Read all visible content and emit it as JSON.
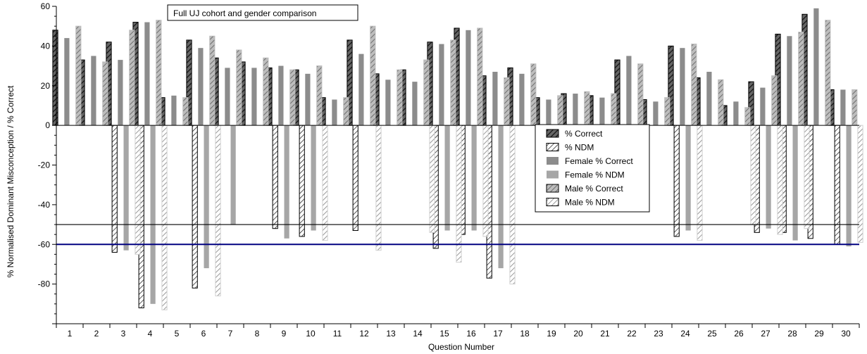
{
  "chart_data": {
    "type": "bar",
    "title": "Full UJ cohort and gender comparison",
    "xlabel": "Question Number",
    "ylabel": "% Normalised Dominant Misconception / % Correct",
    "ylim": [
      -100,
      60
    ],
    "y_ticks": [
      -80,
      -60,
      -40,
      -20,
      0,
      20,
      40,
      60
    ],
    "categories": [
      "1",
      "2",
      "3",
      "4",
      "5",
      "6",
      "7",
      "8",
      "9",
      "10",
      "11",
      "12",
      "13",
      "14",
      "15",
      "16",
      "17",
      "18",
      "19",
      "20",
      "21",
      "22",
      "23",
      "24",
      "25",
      "26",
      "27",
      "28",
      "29",
      "30"
    ],
    "grid": false,
    "legend_position": "center-right",
    "reference_lines": [
      {
        "y": -50,
        "color": "#000000"
      },
      {
        "y": -60,
        "color": "#000080"
      }
    ],
    "series": [
      {
        "name": "% Correct",
        "pattern": "dark-hatch",
        "values": [
          48,
          33,
          42,
          52,
          14,
          43,
          34,
          32,
          29,
          28,
          14,
          43,
          26,
          28,
          42,
          49,
          25,
          29,
          14,
          16,
          15,
          33,
          13,
          40,
          24,
          10,
          22,
          46,
          56,
          18
        ]
      },
      {
        "name": "% NDM",
        "pattern": "white-hatch",
        "values": [
          0,
          0,
          -64,
          -92,
          0,
          -82,
          0,
          0,
          -52,
          -56,
          0,
          -53,
          0,
          0,
          -62,
          -55,
          -77,
          0,
          0,
          0,
          0,
          0,
          0,
          -56,
          0,
          0,
          -54,
          -54,
          -57,
          -60
        ]
      },
      {
        "name": "Female % Correct",
        "pattern": "solid-dark-gray",
        "values": [
          44,
          35,
          33,
          52,
          15,
          39,
          29,
          29,
          30,
          26,
          13,
          36,
          23,
          22,
          41,
          48,
          27,
          26,
          13,
          16,
          14,
          35,
          12,
          39,
          27,
          12,
          19,
          45,
          59,
          18
        ]
      },
      {
        "name": "Female % NDM",
        "pattern": "solid-light-gray",
        "values": [
          0,
          0,
          -63,
          -90,
          0,
          -72,
          -50,
          0,
          -57,
          -53,
          0,
          0,
          0,
          0,
          -53,
          -53,
          -72,
          0,
          0,
          0,
          0,
          0,
          0,
          -53,
          0,
          0,
          -52,
          -58,
          0,
          -61
        ]
      },
      {
        "name": "Male % Correct",
        "pattern": "gray-hatch",
        "values": [
          50,
          32,
          48,
          53,
          14,
          45,
          38,
          34,
          28,
          30,
          14,
          50,
          28,
          33,
          43,
          49,
          24,
          31,
          15,
          17,
          16,
          31,
          14,
          41,
          23,
          9,
          25,
          47,
          53,
          18
        ]
      },
      {
        "name": "Male % NDM",
        "pattern": "light-hatch",
        "values": [
          0,
          0,
          -65,
          -93,
          0,
          -86,
          0,
          0,
          0,
          -58,
          0,
          -63,
          0,
          -54,
          -69,
          -56,
          -80,
          0,
          0,
          0,
          0,
          0,
          0,
          -58,
          0,
          -50,
          -55,
          -52,
          0,
          -59
        ]
      }
    ]
  }
}
